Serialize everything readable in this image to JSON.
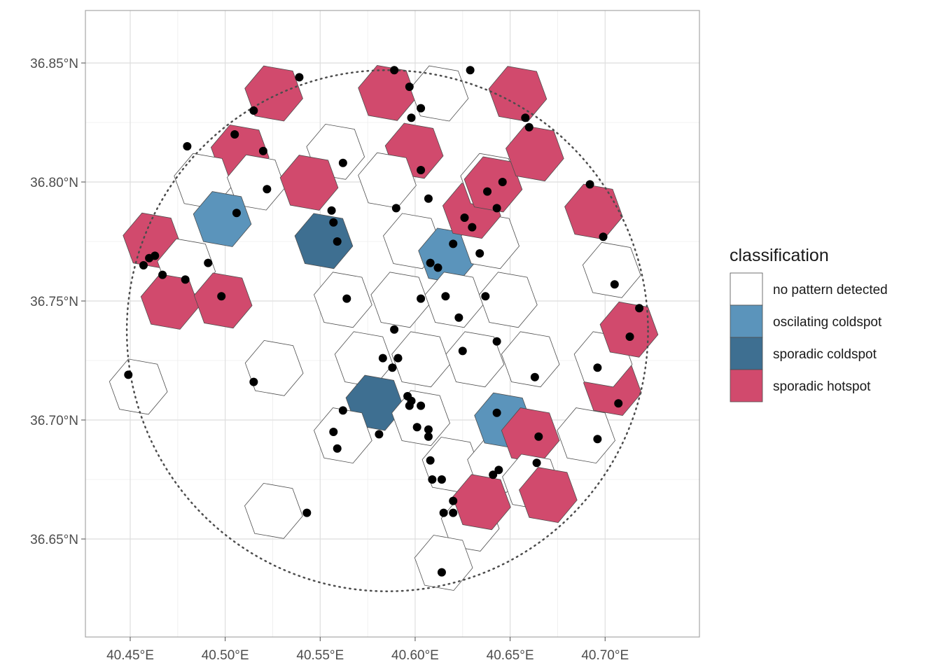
{
  "colors": {
    "no pattern detected": "#ffffff",
    "oscilating coldspot": "#5b94bb",
    "sporadic coldspot": "#3e6f91",
    "sporadic hotspot": "#d14a6d"
  },
  "legend": {
    "title": "classification",
    "items": [
      {
        "label": "no pattern detected",
        "key": "no pattern detected"
      },
      {
        "label": "oscilating coldspot",
        "key": "oscilating coldspot"
      },
      {
        "label": "sporadic coldspot",
        "key": "sporadic coldspot"
      },
      {
        "label": "sporadic hotspot",
        "key": "sporadic hotspot"
      }
    ]
  },
  "axes": {
    "x_ticks": [
      {
        "value": 40.45,
        "label": "40.45°E"
      },
      {
        "value": 40.5,
        "label": "40.50°E"
      },
      {
        "value": 40.55,
        "label": "40.55°E"
      },
      {
        "value": 40.6,
        "label": "40.60°E"
      },
      {
        "value": 40.65,
        "label": "40.65°E"
      },
      {
        "value": 40.7,
        "label": "40.70°E"
      }
    ],
    "y_ticks": [
      {
        "value": 36.65,
        "label": "36.65°N"
      },
      {
        "value": 36.7,
        "label": "36.70°N"
      },
      {
        "value": 36.75,
        "label": "36.75°N"
      },
      {
        "value": 36.8,
        "label": "36.80°N"
      },
      {
        "value": 36.85,
        "label": "36.85°N"
      }
    ],
    "xlim": [
      40.4267,
      40.7395
    ],
    "ylim": [
      36.6076,
      36.8716
    ]
  },
  "chart_data": {
    "type": "map",
    "grid": true,
    "legend_position": "right",
    "study_area": {
      "center_lon": 40.5854,
      "center_lat": 36.7375,
      "radius_deg": 0.1372
    },
    "hexagons": [
      {
        "lon": 40.5256,
        "lat": 36.8372,
        "class": "sporadic hotspot"
      },
      {
        "lon": 40.5078,
        "lat": 36.8124,
        "class": "sporadic hotspot"
      },
      {
        "lon": 40.4884,
        "lat": 36.8004,
        "class": "no pattern detected"
      },
      {
        "lon": 40.5163,
        "lat": 36.7998,
        "class": "no pattern detected"
      },
      {
        "lon": 40.4985,
        "lat": 36.7844,
        "class": "oscilating coldspot"
      },
      {
        "lon": 40.4615,
        "lat": 36.7754,
        "class": "sporadic hotspot"
      },
      {
        "lon": 40.4796,
        "lat": 36.7645,
        "class": "no pattern detected"
      },
      {
        "lon": 40.4709,
        "lat": 36.7497,
        "class": "sporadic hotspot"
      },
      {
        "lon": 40.4989,
        "lat": 36.7502,
        "class": "sporadic hotspot"
      },
      {
        "lon": 40.4543,
        "lat": 36.714,
        "class": "no pattern detected"
      },
      {
        "lon": 40.5258,
        "lat": 36.7218,
        "class": "no pattern detected"
      },
      {
        "lon": 40.5255,
        "lat": 36.6618,
        "class": "no pattern detected"
      },
      {
        "lon": 40.5581,
        "lat": 36.8127,
        "class": "no pattern detected"
      },
      {
        "lon": 40.5442,
        "lat": 36.7997,
        "class": "sporadic hotspot"
      },
      {
        "lon": 40.5519,
        "lat": 36.7752,
        "class": "sporadic coldspot"
      },
      {
        "lon": 40.562,
        "lat": 36.7505,
        "class": "no pattern detected"
      },
      {
        "lon": 40.573,
        "lat": 36.7255,
        "class": "no pattern detected"
      },
      {
        "lon": 40.5788,
        "lat": 36.7072,
        "class": "sporadic coldspot"
      },
      {
        "lon": 40.562,
        "lat": 36.6935,
        "class": "no pattern detected"
      },
      {
        "lon": 40.5853,
        "lat": 36.8374,
        "class": "sporadic hotspot"
      },
      {
        "lon": 40.6127,
        "lat": 36.8372,
        "class": "no pattern detected"
      },
      {
        "lon": 40.5995,
        "lat": 36.8131,
        "class": "sporadic hotspot"
      },
      {
        "lon": 40.5853,
        "lat": 36.8007,
        "class": "no pattern detected"
      },
      {
        "lon": 40.5985,
        "lat": 36.7752,
        "class": "no pattern detected"
      },
      {
        "lon": 40.617,
        "lat": 36.769,
        "class": "oscilating coldspot"
      },
      {
        "lon": 40.592,
        "lat": 36.7505,
        "class": "no pattern detected"
      },
      {
        "lon": 40.6205,
        "lat": 36.7505,
        "class": "no pattern detected"
      },
      {
        "lon": 40.603,
        "lat": 36.7255,
        "class": "no pattern detected"
      },
      {
        "lon": 40.6315,
        "lat": 36.7255,
        "class": "no pattern detected"
      },
      {
        "lon": 40.603,
        "lat": 36.7008,
        "class": "no pattern detected"
      },
      {
        "lon": 40.619,
        "lat": 36.6812,
        "class": "no pattern detected"
      },
      {
        "lon": 40.629,
        "lat": 36.6565,
        "class": "no pattern detected"
      },
      {
        "lon": 40.615,
        "lat": 36.64,
        "class": "no pattern detected"
      },
      {
        "lon": 40.6428,
        "lat": 36.6812,
        "class": "no pattern detected"
      },
      {
        "lon": 40.635,
        "lat": 36.6655,
        "class": "sporadic hotspot"
      },
      {
        "lon": 40.6465,
        "lat": 36.6998,
        "class": "oscilating coldspot"
      },
      {
        "lon": 40.6607,
        "lat": 36.6935,
        "class": "sporadic hotspot"
      },
      {
        "lon": 40.6612,
        "lat": 36.674,
        "class": "no pattern detected"
      },
      {
        "lon": 40.67,
        "lat": 36.6685,
        "class": "sporadic hotspot"
      },
      {
        "lon": 40.69,
        "lat": 36.6935,
        "class": "no pattern detected"
      },
      {
        "lon": 40.7039,
        "lat": 36.7135,
        "class": "sporadic hotspot"
      },
      {
        "lon": 40.699,
        "lat": 36.7255,
        "class": "no pattern detected"
      },
      {
        "lon": 40.6607,
        "lat": 36.7255,
        "class": "no pattern detected"
      },
      {
        "lon": 40.649,
        "lat": 36.7505,
        "class": "no pattern detected"
      },
      {
        "lon": 40.6395,
        "lat": 36.7752,
        "class": "no pattern detected"
      },
      {
        "lon": 40.6298,
        "lat": 36.7879,
        "class": "sporadic hotspot"
      },
      {
        "lon": 40.6392,
        "lat": 36.8004,
        "class": "no pattern detected"
      },
      {
        "lon": 40.6411,
        "lat": 36.799,
        "class": "sporadic hotspot"
      },
      {
        "lon": 40.654,
        "lat": 36.837,
        "class": "sporadic hotspot"
      },
      {
        "lon": 40.663,
        "lat": 36.812,
        "class": "sporadic hotspot"
      },
      {
        "lon": 40.694,
        "lat": 36.7875,
        "class": "sporadic hotspot"
      },
      {
        "lon": 40.7035,
        "lat": 36.763,
        "class": "no pattern detected"
      },
      {
        "lon": 40.7126,
        "lat": 36.738,
        "class": "sporadic hotspot"
      }
    ],
    "points": [
      [
        40.539,
        36.844
      ],
      [
        40.515,
        36.83
      ],
      [
        40.505,
        36.82
      ],
      [
        40.48,
        36.815
      ],
      [
        40.52,
        36.813
      ],
      [
        40.522,
        36.797
      ],
      [
        40.506,
        36.787
      ],
      [
        40.491,
        36.766
      ],
      [
        40.463,
        36.769
      ],
      [
        40.46,
        36.768
      ],
      [
        40.457,
        36.765
      ],
      [
        40.467,
        36.761
      ],
      [
        40.479,
        36.759
      ],
      [
        40.498,
        36.752
      ],
      [
        40.449,
        36.719
      ],
      [
        40.515,
        36.716
      ],
      [
        40.543,
        36.661
      ],
      [
        40.562,
        36.808
      ],
      [
        40.556,
        36.788
      ],
      [
        40.557,
        36.783
      ],
      [
        40.559,
        36.775
      ],
      [
        40.564,
        36.751
      ],
      [
        40.589,
        36.847
      ],
      [
        40.597,
        36.84
      ],
      [
        40.629,
        36.847
      ],
      [
        40.603,
        36.831
      ],
      [
        40.598,
        36.827
      ],
      [
        40.603,
        36.805
      ],
      [
        40.59,
        36.789
      ],
      [
        40.607,
        36.793
      ],
      [
        40.608,
        36.766
      ],
      [
        40.612,
        36.764
      ],
      [
        40.62,
        36.774
      ],
      [
        40.626,
        36.785
      ],
      [
        40.63,
        36.781
      ],
      [
        40.638,
        36.796
      ],
      [
        40.646,
        36.8
      ],
      [
        40.643,
        36.789
      ],
      [
        40.634,
        36.77
      ],
      [
        40.616,
        36.752
      ],
      [
        40.603,
        36.751
      ],
      [
        40.637,
        36.752
      ],
      [
        40.623,
        36.743
      ],
      [
        40.589,
        36.738
      ],
      [
        40.643,
        36.733
      ],
      [
        40.625,
        36.729
      ],
      [
        40.583,
        36.726
      ],
      [
        40.591,
        36.726
      ],
      [
        40.588,
        36.722
      ],
      [
        40.663,
        36.718
      ],
      [
        40.596,
        36.71
      ],
      [
        40.598,
        36.708
      ],
      [
        40.597,
        36.706
      ],
      [
        40.603,
        36.706
      ],
      [
        40.562,
        36.704
      ],
      [
        40.643,
        36.703
      ],
      [
        40.557,
        36.695
      ],
      [
        40.581,
        36.694
      ],
      [
        40.601,
        36.697
      ],
      [
        40.607,
        36.696
      ],
      [
        40.607,
        36.693
      ],
      [
        40.665,
        36.693
      ],
      [
        40.559,
        36.688
      ],
      [
        40.608,
        36.683
      ],
      [
        40.664,
        36.682
      ],
      [
        40.644,
        36.679
      ],
      [
        40.641,
        36.677
      ],
      [
        40.609,
        36.675
      ],
      [
        40.614,
        36.675
      ],
      [
        40.62,
        36.666
      ],
      [
        40.62,
        36.661
      ],
      [
        40.615,
        36.661
      ],
      [
        40.614,
        36.636
      ],
      [
        40.658,
        36.827
      ],
      [
        40.66,
        36.823
      ],
      [
        40.692,
        36.799
      ],
      [
        40.699,
        36.777
      ],
      [
        40.705,
        36.757
      ],
      [
        40.718,
        36.747
      ],
      [
        40.713,
        36.735
      ],
      [
        40.696,
        36.722
      ],
      [
        40.707,
        36.707
      ],
      [
        40.696,
        36.692
      ]
    ]
  }
}
